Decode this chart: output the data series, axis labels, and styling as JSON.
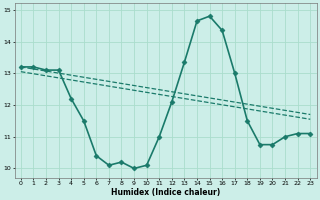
{
  "title": "",
  "xlabel": "Humidex (Indice chaleur)",
  "ylabel": "",
  "background_color": "#cceee8",
  "grid_color": "#aaddcc",
  "line_color": "#1a7a6a",
  "xlim": [
    -0.5,
    23.5
  ],
  "ylim": [
    9.7,
    15.2
  ],
  "yticks": [
    10,
    11,
    12,
    13,
    14,
    15
  ],
  "xticks": [
    0,
    1,
    2,
    3,
    4,
    5,
    6,
    7,
    8,
    9,
    10,
    11,
    12,
    13,
    14,
    15,
    16,
    17,
    18,
    19,
    20,
    21,
    22,
    23
  ],
  "series": [
    {
      "x": [
        0,
        1,
        2,
        3,
        4,
        5,
        6,
        7,
        8,
        9,
        10,
        11,
        12,
        13,
        14,
        15,
        16,
        17,
        18,
        19,
        20,
        21,
        22,
        23
      ],
      "y": [
        13.2,
        13.2,
        13.1,
        13.1,
        12.2,
        11.5,
        10.4,
        10.1,
        10.2,
        10.0,
        10.1,
        11.0,
        12.1,
        13.35,
        14.65,
        14.8,
        14.35,
        13.0,
        11.5,
        10.75,
        10.75,
        11.0,
        11.1,
        11.1
      ],
      "marker": "D",
      "markersize": 2.5,
      "linewidth": 1.2,
      "linestyle": "-"
    },
    {
      "x": [
        0,
        23
      ],
      "y": [
        13.2,
        11.7
      ],
      "marker": null,
      "markersize": 0,
      "linewidth": 0.9,
      "linestyle": "--"
    },
    {
      "x": [
        0,
        23
      ],
      "y": [
        13.05,
        11.55
      ],
      "marker": null,
      "markersize": 0,
      "linewidth": 0.9,
      "linestyle": "--"
    }
  ]
}
